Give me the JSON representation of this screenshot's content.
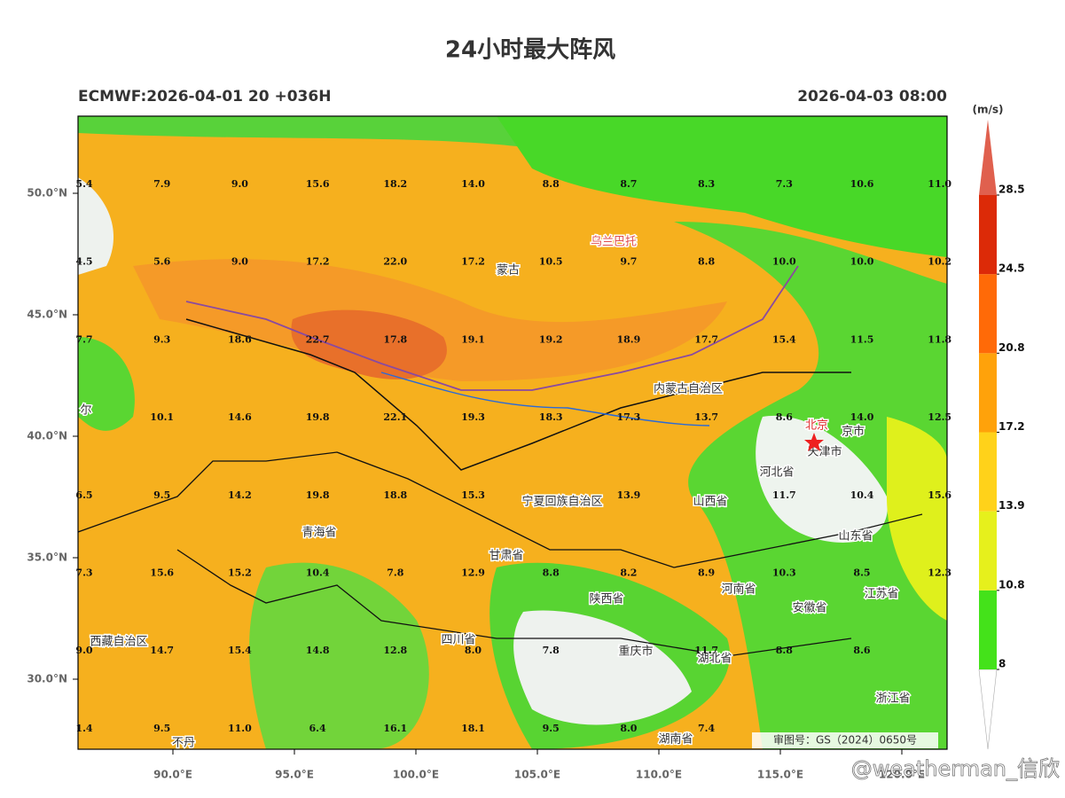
{
  "title": "24小时最大阵风",
  "model_run": "ECMWF:2026-04-01 20 +036H",
  "valid_time": "2026-04-03 08:00",
  "lat_ticks": [
    {
      "value": 50,
      "label": "50.0°N"
    },
    {
      "value": 45,
      "label": "45.0°N"
    },
    {
      "value": 40,
      "label": "40.0°N"
    },
    {
      "value": 35,
      "label": "35.0°N"
    },
    {
      "value": 30,
      "label": "30.0°N"
    }
  ],
  "lon_ticks": [
    {
      "value": 90,
      "label": "90.0°E"
    },
    {
      "value": 95,
      "label": "95.0°E"
    },
    {
      "value": 100,
      "label": "100.0°E"
    },
    {
      "value": 105,
      "label": "105.0°E"
    },
    {
      "value": 110,
      "label": "110.0°E"
    },
    {
      "value": 115,
      "label": "115.0°E"
    },
    {
      "value": 120,
      "label": "120.0°E"
    }
  ],
  "value_grid": [
    [
      "5.4",
      "7.9",
      "9.0",
      "15.6",
      "18.2",
      "14.0",
      "8.8",
      "8.7",
      "8.3",
      "7.3",
      "10.6",
      "11.0"
    ],
    [
      "4.5",
      "5.6",
      "9.0",
      "17.2",
      "22.0",
      "17.2",
      "10.5",
      "9.7",
      "8.8",
      "10.0",
      "10.0",
      "10.2"
    ],
    [
      "7.7",
      "9.3",
      "18.6",
      "22.7",
      "17.8",
      "19.1",
      "19.2",
      "18.9",
      "17.7",
      "15.4",
      "11.5",
      "11.8"
    ],
    [
      null,
      "10.1",
      "14.6",
      "19.8",
      "22.1",
      "19.3",
      "18.3",
      "17.3",
      "13.7",
      "8.6",
      "14.0",
      "12.5"
    ],
    [
      "6.5",
      "9.5",
      "14.2",
      "19.8",
      "18.8",
      "15.3",
      null,
      "13.9",
      null,
      "11.7",
      "10.4",
      "15.6"
    ],
    [
      "7.3",
      "15.6",
      "15.2",
      "10.4",
      "7.8",
      "12.9",
      "8.8",
      "8.2",
      "8.9",
      "10.3",
      "8.5",
      "12.3"
    ],
    [
      "9.0",
      "14.7",
      "15.4",
      "14.8",
      "12.8",
      "8.0",
      "7.8",
      null,
      "11.7",
      "8.8",
      "8.6",
      null
    ],
    [
      "1.4",
      "9.5",
      "11.0",
      "6.4",
      "16.1",
      "18.1",
      "9.5",
      "8.0",
      "7.4",
      null,
      null,
      null
    ]
  ],
  "places": [
    "蒙古",
    "乌兰巴托",
    "内蒙古自治区",
    "北京",
    "天津市",
    "河北省",
    "山西省",
    "山东省",
    "宁夏回族自治区",
    "青海省",
    "甘肃省",
    "陕西省",
    "河南省",
    "安徽省",
    "江苏省",
    "四川省",
    "西藏自治区",
    "重庆市",
    "湖北省",
    "湖南省",
    "浙江省",
    "不丹",
    "尔",
    "京市"
  ],
  "colorbar": {
    "unit": "(m/s)",
    "levels": [
      8,
      10.8,
      13.9,
      17.2,
      20.8,
      24.5,
      28.5
    ],
    "colors": [
      "#ffffff",
      "#44e21a",
      "#e6f01c",
      "#ffd21a",
      "#ffa20a",
      "#ff6a08",
      "#dc2a08",
      "#e0604e"
    ]
  },
  "approval": "审图号：GS（2024）0650号",
  "watermark": "@weatherman_信欣"
}
